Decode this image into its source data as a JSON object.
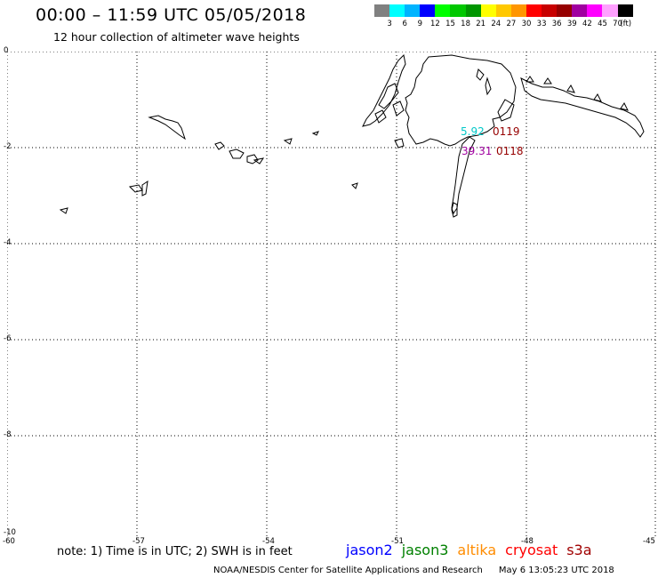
{
  "header": {
    "title": "00:00 – 11:59 UTC 05/05/2018",
    "subtitle": "12 hour collection of altimeter wave heights"
  },
  "legend": {
    "unit": "(ft)",
    "colors": [
      "#808080",
      "#00ffff",
      "#00b4ff",
      "#0000ff",
      "#00ff00",
      "#00c800",
      "#009600",
      "#ffff00",
      "#ffc800",
      "#ff9600",
      "#ff0000",
      "#c80000",
      "#960000",
      "#a000a0",
      "#ff00ff",
      "#ffa0ff",
      "#000000"
    ],
    "labels": [
      "3",
      "6",
      "9",
      "12",
      "15",
      "18",
      "21",
      "24",
      "27",
      "30",
      "33",
      "36",
      "39",
      "42",
      "45",
      "70"
    ]
  },
  "map": {
    "y_ticks": [
      "0",
      "-2",
      "-4",
      "-6",
      "-8",
      "-10"
    ],
    "x_ticks": [
      "-60",
      "-57",
      "-54",
      "-51",
      "-48",
      "-45"
    ],
    "observations": [
      {
        "value": "0119",
        "color": "#960000"
      },
      {
        "value": "0118",
        "color": "#960000"
      },
      {
        "value": "39.31",
        "color": "#a000a0"
      },
      {
        "value": "5.92",
        "color": "#00ffff"
      }
    ]
  },
  "footer": {
    "note": "note:  1) Time is in UTC;  2) SWH is in feet",
    "satellites": [
      {
        "name": "jason2",
        "color": "#0000ff"
      },
      {
        "name": "jason3",
        "color": "#008000"
      },
      {
        "name": "altika",
        "color": "#ff8c00"
      },
      {
        "name": "cryosat",
        "color": "#ff0000"
      },
      {
        "name": "s3a",
        "color": "#a00000"
      }
    ],
    "credit": "NOAA/NESDIS Center for Satellite Applications and Research",
    "timestamp": "May  6 13:05:23 UTC 2018"
  }
}
